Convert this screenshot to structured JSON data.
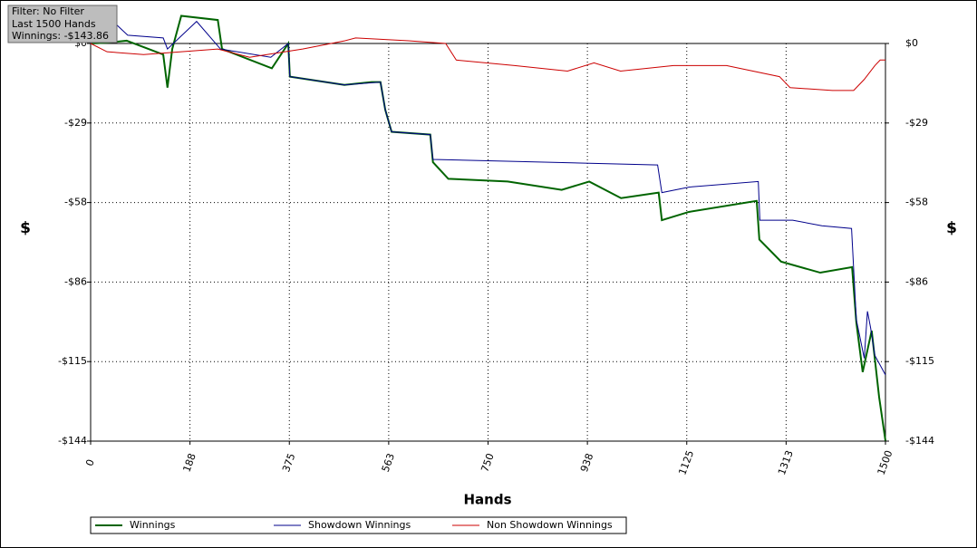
{
  "filter_box": [
    "Filter: No Filter",
    "Last 1500 Hands",
    "Winnings: -$143.86"
  ],
  "chart_data": {
    "type": "line",
    "x_label": "Hands",
    "y_label": "$",
    "y2_label": "$",
    "grid": true,
    "legend": "bottom",
    "xlim": [
      0,
      1500
    ],
    "xticks": [
      0,
      {
        "value": 187.5,
        "label": "188"
      },
      375,
      {
        "value": 562.5,
        "label": "563"
      },
      750,
      {
        "value": 937.5,
        "label": "938"
      },
      1125,
      {
        "value": 1312.5,
        "label": "1313"
      },
      1500
    ],
    "ylim": [
      -144,
      10
    ],
    "yticks": [
      {
        "value": 0,
        "label": "$0"
      },
      {
        "value": -28.8,
        "label": "-$29"
      },
      {
        "value": -57.6,
        "label": "-$58"
      },
      {
        "value": -86.4,
        "label": "-$86"
      },
      {
        "value": -115.2,
        "label": "-$115"
      },
      {
        "value": -144,
        "label": "-$144"
      }
    ],
    "series": [
      {
        "name": "Winnings",
        "color": "#006400",
        "x": [
          0,
          31,
          68,
          137,
          145,
          154,
          171,
          240,
          248,
          342,
          373,
          376,
          479,
          530,
          547,
          556,
          568,
          641,
          646,
          675,
          787,
          889,
          941,
          1001,
          1072,
          1078,
          1129,
          1257,
          1262,
          1303,
          1377,
          1437,
          1445,
          1457,
          1474,
          1488,
          1500
        ],
        "values": [
          0,
          0.3,
          1,
          -4,
          -16,
          -2,
          10,
          8.5,
          -2,
          -9,
          0,
          -12,
          -15,
          -14,
          -14,
          -24,
          -32,
          -33,
          -43,
          -49,
          -50,
          -53,
          -50,
          -56,
          -54,
          -64,
          -61,
          -57,
          -71,
          -79,
          -83,
          -81,
          -101,
          -119,
          -104,
          -128,
          -143.86
        ]
      },
      {
        "name": "Showdown Winnings",
        "color": "#00008b",
        "x": [
          0,
          31,
          70,
          137,
          145,
          200,
          245,
          340,
          373,
          376,
          479,
          547,
          556,
          568,
          641,
          646,
          1070,
          1078,
          1130,
          1260,
          1263,
          1325,
          1380,
          1436,
          1445,
          1460,
          1466,
          1472,
          1480,
          1500
        ],
        "values": [
          0,
          10,
          3,
          2,
          -2,
          8,
          -2,
          -5,
          0,
          -12,
          -15,
          -14,
          -24,
          -32,
          -33,
          -42,
          -44,
          -54,
          -52,
          -50,
          -64,
          -64,
          -66,
          -67,
          -100,
          -114,
          -97,
          -103,
          -113,
          -120
        ]
      },
      {
        "name": "Non Showdown Winnings",
        "color": "#cc0000",
        "x": [
          0,
          31,
          100,
          240,
          300,
          400,
          480,
          500,
          600,
          670,
          690,
          800,
          900,
          950,
          1000,
          1100,
          1200,
          1300,
          1320,
          1400,
          1440,
          1460,
          1480,
          1490,
          1500
        ],
        "values": [
          0,
          -3,
          -4,
          -2,
          -5,
          -2,
          1,
          2,
          1,
          0,
          -6,
          -8,
          -10,
          -7,
          -10,
          -8,
          -8,
          -12,
          -16,
          -17,
          -17,
          -13,
          -8,
          -6,
          -6
        ]
      }
    ]
  }
}
